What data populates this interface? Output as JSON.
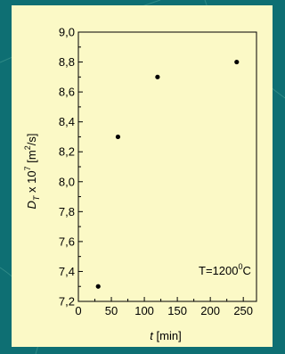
{
  "chart_data": {
    "type": "scatter",
    "x": [
      30,
      60,
      120,
      240
    ],
    "y": [
      7.3,
      8.3,
      8.7,
      8.8
    ],
    "xlim": [
      0,
      270
    ],
    "ylim": [
      7.2,
      9.0
    ],
    "x_ticks": [
      0,
      50,
      100,
      150,
      200,
      250
    ],
    "y_ticks": [
      7.2,
      7.4,
      7.6,
      7.8,
      8.0,
      8.2,
      8.4,
      8.6,
      8.8,
      9.0
    ],
    "x_tick_labels": [
      "0",
      "50",
      "100",
      "150",
      "200",
      "250"
    ],
    "y_tick_labels": [
      "7,2",
      "7,4",
      "7,6",
      "7,8",
      "8,0",
      "8,2",
      "8,4",
      "8,6",
      "8,8",
      "9,0"
    ],
    "xlabel_var": "t",
    "xlabel_unit": " [min]",
    "ylabel_D": "D",
    "ylabel_sub": "T",
    "ylabel_mid": " x 10",
    "ylabel_exp": "7",
    "ylabel_unit_open": " [m",
    "ylabel_unit_exp": "2",
    "ylabel_unit_close": "/s]",
    "annotation_main": "T=1200",
    "annotation_sup": "0",
    "annotation_unit": "C",
    "grid": false,
    "colors": {
      "background": "#0e6f73",
      "panel": "#fbf9c6",
      "marker": "#000000"
    }
  }
}
